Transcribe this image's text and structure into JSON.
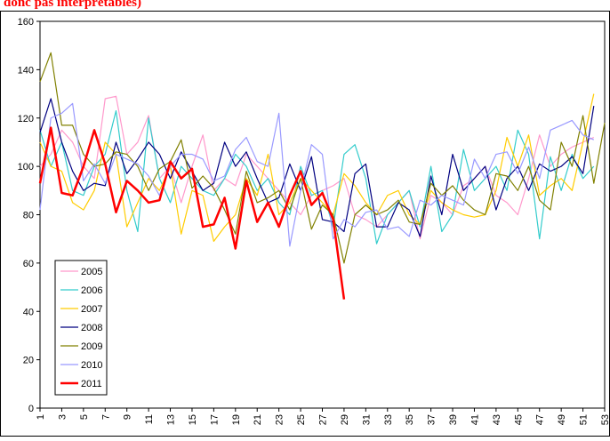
{
  "chart_data": {
    "type": "line",
    "title": "donc pas interprétables)",
    "x": [
      1,
      2,
      3,
      4,
      5,
      6,
      7,
      8,
      9,
      10,
      11,
      12,
      13,
      14,
      15,
      16,
      17,
      18,
      19,
      20,
      21,
      22,
      23,
      24,
      25,
      26,
      27,
      28,
      29,
      30,
      31,
      32,
      33,
      34,
      35,
      36,
      37,
      38,
      39,
      40,
      41,
      42,
      43,
      44,
      45,
      46,
      47,
      48,
      49,
      50,
      51,
      52,
      53
    ],
    "xlim": [
      1,
      53
    ],
    "xticks": [
      1,
      3,
      5,
      7,
      9,
      11,
      13,
      15,
      17,
      19,
      21,
      23,
      25,
      27,
      29,
      31,
      33,
      35,
      37,
      39,
      41,
      43,
      45,
      47,
      49,
      51,
      53
    ],
    "ylim": [
      0,
      160
    ],
    "yticks": [
      0,
      20,
      40,
      60,
      80,
      100,
      120,
      140,
      160
    ],
    "grid": false,
    "legend": "lower left",
    "series": [
      {
        "name": "2005",
        "color": "#ff99cc",
        "line_width": 1.2,
        "values": [
          100,
          105,
          115,
          110,
          100,
          95,
          128,
          129,
          105,
          110,
          121,
          95,
          100,
          85,
          100,
          113,
          90,
          95,
          92,
          105,
          100,
          95,
          90,
          85,
          80,
          88,
          90,
          92,
          95,
          80,
          78,
          75,
          80,
          85,
          90,
          70,
          88,
          85,
          80,
          92,
          95,
          100,
          88,
          85,
          80,
          95,
          113,
          100,
          105,
          108,
          110,
          112,
          null
        ]
      },
      {
        "name": "2006",
        "color": "#33cccc",
        "line_width": 1.2,
        "values": [
          115,
          100,
          110,
          90,
          88,
          100,
          105,
          123,
          90,
          73,
          120,
          95,
          85,
          100,
          95,
          90,
          88,
          95,
          105,
          100,
          90,
          95,
          85,
          80,
          100,
          88,
          90,
          75,
          105,
          109,
          95,
          68,
          80,
          85,
          90,
          75,
          100,
          73,
          80,
          107,
          90,
          95,
          100,
          90,
          115,
          105,
          70,
          104,
          90,
          105,
          95,
          100,
          null
        ]
      },
      {
        "name": "2007",
        "color": "#ffcc00",
        "line_width": 1.2,
        "values": [
          110,
          100,
          98,
          85,
          82,
          90,
          110,
          105,
          75,
          85,
          95,
          90,
          100,
          72,
          90,
          88,
          69,
          75,
          80,
          95,
          88,
          105,
          80,
          85,
          95,
          90,
          85,
          80,
          97,
          92,
          85,
          80,
          88,
          90,
          80,
          76,
          90,
          85,
          82,
          80,
          79,
          80,
          90,
          112,
          100,
          113,
          88,
          92,
          95,
          90,
          110,
          130,
          null
        ]
      },
      {
        "name": "2008",
        "color": "#000080",
        "line_width": 1.2,
        "values": [
          114,
          128,
          110,
          98,
          90,
          93,
          92,
          110,
          97,
          103,
          110,
          105,
          95,
          106,
          98,
          90,
          93,
          110,
          100,
          106,
          95,
          85,
          87,
          101,
          90,
          104,
          78,
          77,
          73,
          97,
          101,
          75,
          75,
          85,
          82,
          71,
          96,
          80,
          105,
          90,
          95,
          100,
          82,
          95,
          100,
          90,
          101,
          98,
          100,
          104,
          97,
          125,
          null
        ]
      },
      {
        "name": "2009",
        "color": "#808000",
        "line_width": 1.2,
        "values": [
          135,
          147,
          117,
          117,
          105,
          100,
          101,
          106,
          105,
          100,
          90,
          99,
          102,
          111,
          91,
          96,
          91,
          82,
          72,
          98,
          85,
          87,
          90,
          82,
          95,
          74,
          84,
          80,
          60,
          80,
          84,
          80,
          82,
          86,
          77,
          76,
          93,
          88,
          92,
          86,
          82,
          80,
          97,
          96,
          90,
          100,
          86,
          82,
          110,
          100,
          121,
          93,
          118
        ]
      },
      {
        "name": "2010",
        "color": "#9999ff",
        "line_width": 1.2,
        "values": [
          82,
          120,
          122,
          126,
          94,
          101,
          93,
          105,
          103,
          101,
          96,
          88,
          100,
          105,
          105,
          103,
          94,
          96,
          107,
          112,
          102,
          100,
          122,
          67,
          90,
          109,
          105,
          70,
          78,
          75,
          81,
          82,
          74,
          75,
          71,
          86,
          84,
          88,
          86,
          84,
          103,
          95,
          105,
          106,
          97,
          108,
          95,
          115,
          117,
          119,
          113,
          111,
          null
        ]
      },
      {
        "name": "2011",
        "color": "#ff0000",
        "line_width": 2.5,
        "values": [
          93,
          116,
          89,
          88,
          100,
          115,
          101,
          81,
          94,
          90,
          85,
          86,
          102,
          95,
          99,
          75,
          76,
          87,
          66,
          94,
          77,
          85,
          75,
          88,
          98,
          84,
          89,
          78,
          45,
          null,
          null,
          null,
          null,
          null,
          null,
          null,
          null,
          null,
          null,
          null,
          null,
          null,
          null,
          null,
          null,
          null,
          null,
          null,
          null,
          null,
          null,
          null,
          null
        ]
      }
    ]
  }
}
